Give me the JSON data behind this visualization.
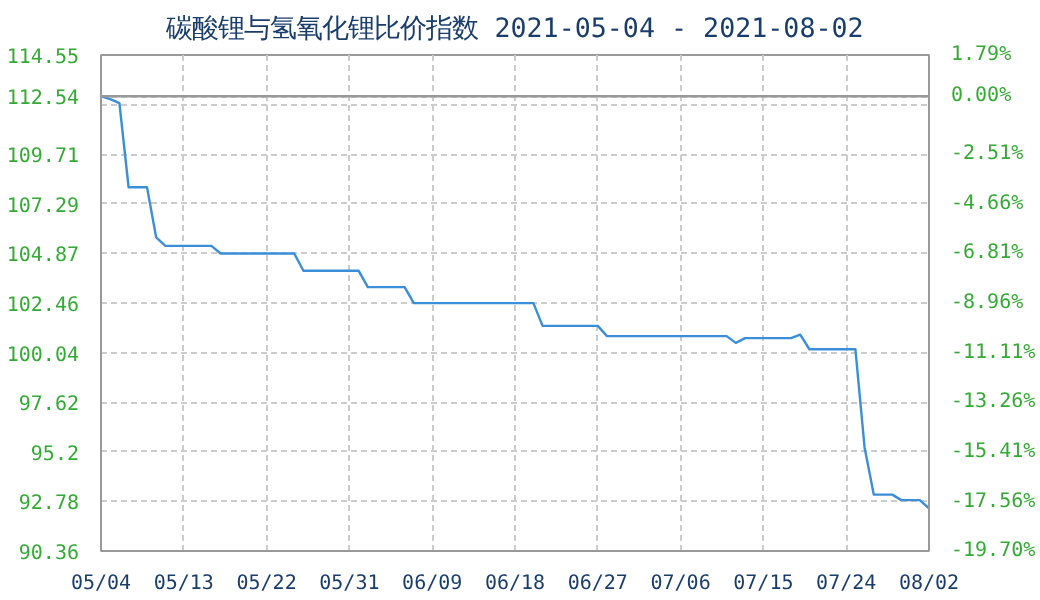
{
  "chart_data": {
    "type": "line",
    "title": "碳酸锂与氢氧化锂比价指数 2021-05-04 - 2021-08-02",
    "x": [
      "2021-05-04",
      "2021-05-05",
      "2021-05-06",
      "2021-05-07",
      "2021-05-09",
      "2021-05-10",
      "2021-05-11",
      "2021-05-16",
      "2021-05-17",
      "2021-05-25",
      "2021-05-26",
      "2021-06-01",
      "2021-06-02",
      "2021-06-06",
      "2021-06-07",
      "2021-06-20",
      "2021-06-21",
      "2021-06-27",
      "2021-06-28",
      "2021-07-11",
      "2021-07-12",
      "2021-07-13",
      "2021-07-18",
      "2021-07-19",
      "2021-07-20",
      "2021-07-25",
      "2021-07-26",
      "2021-07-27",
      "2021-07-29",
      "2021-07-30",
      "2021-08-01",
      "2021-08-02"
    ],
    "series": [
      {
        "color": "#3a8fd8",
        "values": [
          112.54,
          112.4,
          112.2,
          108.1,
          108.1,
          105.65,
          105.24,
          105.24,
          104.87,
          104.87,
          104.03,
          104.03,
          103.23,
          103.23,
          102.45,
          102.45,
          101.34,
          101.34,
          100.84,
          100.84,
          100.51,
          100.74,
          100.74,
          100.91,
          100.2,
          100.2,
          95.4,
          93.11,
          93.11,
          92.84,
          92.84,
          92.44
        ]
      }
    ],
    "xlim": [
      "2021-05-04",
      "2021-08-02"
    ],
    "xticks": [
      {
        "value": "2021-05-04",
        "label": "05/04"
      },
      {
        "value": "2021-05-13",
        "label": "05/13"
      },
      {
        "value": "2021-05-22",
        "label": "05/22"
      },
      {
        "value": "2021-05-31",
        "label": "05/31"
      },
      {
        "value": "2021-06-09",
        "label": "06/09"
      },
      {
        "value": "2021-06-18",
        "label": "06/18"
      },
      {
        "value": "2021-06-27",
        "label": "06/27"
      },
      {
        "value": "2021-07-06",
        "label": "07/06"
      },
      {
        "value": "2021-07-15",
        "label": "07/15"
      },
      {
        "value": "2021-07-24",
        "label": "07/24"
      },
      {
        "value": "2021-08-02",
        "label": "08/02"
      }
    ],
    "ylim": [
      90.36,
      114.55
    ],
    "yticks": [
      114.55,
      112.54,
      {
        "value": 112.13,
        "label": null
      },
      109.71,
      107.29,
      104.87,
      102.46,
      100.04,
      97.62,
      95.2,
      92.78,
      90.36
    ],
    "y2lim": [
      -19.7,
      1.79
    ],
    "y2ticks": [
      {
        "value": 1.79,
        "label": "1.79%"
      },
      {
        "value": 0.0,
        "label": "0.00%"
      },
      {
        "value": -2.51,
        "label": "-2.51%"
      },
      {
        "value": -4.66,
        "label": "-4.66%"
      },
      {
        "value": -6.81,
        "label": "-6.81%"
      },
      {
        "value": -8.96,
        "label": "-8.96%"
      },
      {
        "value": -11.11,
        "label": "-11.11%"
      },
      {
        "value": -13.26,
        "label": "-13.26%"
      },
      {
        "value": -15.41,
        "label": "-15.41%"
      },
      {
        "value": -17.56,
        "label": "-17.56%"
      },
      {
        "value": -19.7,
        "label": "-19.70%"
      }
    ],
    "ref_lines": [
      {
        "axis": "y",
        "value": 112.54,
        "color": "#999999",
        "line_style": "solid"
      }
    ],
    "grid": true,
    "marker": "none",
    "line_style": "solid"
  }
}
